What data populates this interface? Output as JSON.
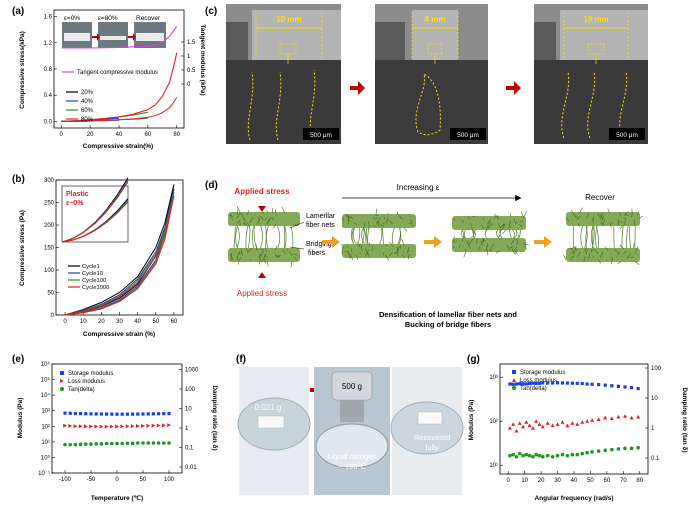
{
  "panels": {
    "a": {
      "letter": "(a)",
      "inset_labels": [
        "ε=0%",
        "ε=80%",
        "Recover"
      ],
      "ylabel": "Compressive stress(kPa)",
      "ylabel_right": "Tangent modulus (kPa)",
      "xlabel": "Compressive strain(%)",
      "legend": [
        "Tangent compressive modulus",
        "20%",
        "40%",
        "60%",
        "80%"
      ],
      "xticks": [
        "0",
        "20",
        "40",
        "60",
        "80"
      ],
      "yticks": [
        "0.0",
        "0.4",
        "0.8",
        "1.2",
        "1.6"
      ],
      "yticks_right": [
        "0",
        "0.5",
        "1",
        "1.5"
      ]
    },
    "b": {
      "letter": "(b)",
      "ylabel": "Compressive stress (Pa)",
      "xlabel": "Compressive strain (%)",
      "inset_title": "Plastic",
      "inset_sub": "ε~0%",
      "legend": [
        "Cycle1",
        "Cycle10",
        "Cycle100",
        "Cycle1000"
      ],
      "xticks": [
        "0",
        "10",
        "20",
        "30",
        "40",
        "50",
        "60"
      ],
      "yticks": [
        "0",
        "50",
        "100",
        "150",
        "200",
        "250",
        "300"
      ]
    },
    "c": {
      "letter": "(c)",
      "widths": [
        "10 mm",
        "4 mm",
        "10 mm"
      ],
      "scalebars": [
        "500 μm",
        "500 μm",
        "500 μm"
      ]
    },
    "d": {
      "letter": "(d)",
      "applied_stress_top": "Applied stress",
      "applied_stress_bottom": "Applied stress",
      "lamellar": "Lamerllar fiber nets",
      "bridging": "Bridging fibers",
      "increasing": "Increasing ε",
      "recover": "Recover",
      "caption": "Densification of lamellar fiber nets and Bucking of bridge fibers"
    },
    "e": {
      "letter": "(e)",
      "ylabel": "Modulus (Pa)",
      "ylabel_right": "Damping ratio (tan δ)",
      "xlabel": "Temperature (℃)",
      "legend": [
        "Storage modulus",
        "Loss modulus",
        "Tan(delta)"
      ],
      "xticks": [
        "-100",
        "-50",
        "0",
        "50",
        "100"
      ],
      "yticks": [
        "10⁻¹",
        "10⁰",
        "10¹",
        "10²",
        "10³",
        "10⁴",
        "10⁵",
        "10⁶"
      ],
      "yticks_right": [
        "0.01",
        "0.1",
        "1",
        "10",
        "100",
        "1000"
      ]
    },
    "f": {
      "letter": "(f)",
      "mass": "0.031 g",
      "weight": "500 g",
      "nitrogen": "Liquid nitrogen",
      "temperature": "~-196℃",
      "recovered": "Recovered fully"
    },
    "g": {
      "letter": "(g)",
      "ylabel": "Modulus (Pa)",
      "ylabel_right": "Damping ratio (tan δ)",
      "xlabel": "Angular frequency (rad/s)",
      "legend": [
        "Storage modulus",
        "Loss modulus",
        "Tan(delta)"
      ],
      "xticks": [
        "0",
        "10",
        "20",
        "30",
        "40",
        "50",
        "60",
        "70",
        "80"
      ],
      "yticks": [
        "10¹",
        "10²",
        "10³"
      ],
      "yticks_right": [
        "0.1",
        "1",
        "10",
        "100"
      ]
    }
  },
  "colors": {
    "c20": "#000000",
    "c40": "#1f3fd1",
    "c60": "#2e8b2e",
    "c80": "#e02020",
    "tangent": "#e040e0",
    "storage": "#1a3fe0",
    "loss": "#e02020",
    "tan": "#1a9a1a",
    "arrow_red": "#c00000",
    "arrow_orange": "#f0a020"
  },
  "chart_data": [
    {
      "panel": "a",
      "type": "line",
      "xlabel": "Compressive strain(%)",
      "ylabel": "Compressive stress(kPa)",
      "xlim": [
        -5,
        85
      ],
      "ylim": [
        -0.1,
        1.7
      ],
      "series": [
        {
          "name": "20%",
          "x": [
            0,
            5,
            10,
            15,
            20
          ],
          "y": [
            0,
            0.004,
            0.008,
            0.012,
            0.016
          ]
        },
        {
          "name": "40%",
          "x": [
            0,
            10,
            20,
            30,
            40
          ],
          "y": [
            0,
            0.01,
            0.02,
            0.035,
            0.05
          ]
        },
        {
          "name": "60%",
          "x": [
            0,
            10,
            20,
            30,
            40,
            50,
            60
          ],
          "y": [
            0,
            0.01,
            0.025,
            0.045,
            0.07,
            0.1,
            0.14
          ]
        },
        {
          "name": "80%",
          "x": [
            0,
            10,
            20,
            30,
            40,
            50,
            60,
            65,
            70,
            75,
            78,
            80
          ],
          "y": [
            0,
            0.01,
            0.025,
            0.045,
            0.07,
            0.11,
            0.18,
            0.25,
            0.38,
            0.6,
            0.85,
            1.05
          ]
        },
        {
          "name": "Tangent compressive modulus",
          "x": [
            0,
            20,
            40,
            60,
            70,
            75,
            80
          ],
          "y": [
            1.12,
            1.12,
            1.13,
            1.15,
            1.2,
            1.3,
            1.45
          ]
        }
      ]
    },
    {
      "panel": "b",
      "type": "line",
      "xlabel": "Compressive strain (%)",
      "ylabel": "Compressive stress (Pa)",
      "xlim": [
        -5,
        65
      ],
      "ylim": [
        0,
        300
      ],
      "series": [
        {
          "name": "Cycle1",
          "x": [
            0,
            10,
            20,
            30,
            40,
            50,
            55,
            60
          ],
          "y": [
            0,
            12,
            28,
            50,
            85,
            150,
            205,
            290
          ]
        },
        {
          "name": "Cycle10",
          "x": [
            0,
            10,
            20,
            30,
            40,
            50,
            55,
            60
          ],
          "y": [
            0,
            10,
            24,
            45,
            80,
            140,
            195,
            280
          ]
        },
        {
          "name": "Cycle100",
          "x": [
            0,
            10,
            20,
            30,
            40,
            50,
            55,
            60
          ],
          "y": [
            0,
            9,
            22,
            42,
            76,
            135,
            188,
            272
          ]
        },
        {
          "name": "Cycle1000",
          "x": [
            0,
            10,
            20,
            30,
            40,
            50,
            55,
            60
          ],
          "y": [
            0,
            8,
            20,
            40,
            72,
            130,
            180,
            265
          ]
        }
      ]
    },
    {
      "panel": "e",
      "type": "scatter",
      "xlabel": "Temperature (℃)",
      "ylabel": "Modulus (Pa)",
      "xlim": [
        -125,
        125
      ],
      "ylim_log": [
        -1,
        6
      ],
      "series": [
        {
          "name": "Storage modulus",
          "x": [
            -100,
            -90,
            -80,
            -70,
            -60,
            -50,
            -40,
            -30,
            -20,
            -10,
            0,
            10,
            20,
            30,
            40,
            50,
            60,
            70,
            80,
            90,
            100
          ],
          "y": [
            700,
            680,
            660,
            650,
            640,
            630,
            620,
            615,
            610,
            605,
            600,
            600,
            600,
            605,
            610,
            615,
            620,
            630,
            640,
            650,
            660
          ]
        },
        {
          "name": "Loss modulus",
          "x": [
            -100,
            -90,
            -80,
            -70,
            -60,
            -50,
            -40,
            -30,
            -20,
            -10,
            0,
            10,
            20,
            30,
            40,
            50,
            60,
            70,
            80,
            90,
            100
          ],
          "y": [
            110,
            105,
            100,
            100,
            98,
            97,
            96,
            95,
            95,
            96,
            97,
            98,
            100,
            102,
            104,
            106,
            108,
            110,
            112,
            115,
            118
          ]
        },
        {
          "name": "Tan(delta)",
          "x": [
            -100,
            -90,
            -80,
            -70,
            -60,
            -50,
            -40,
            -30,
            -20,
            -10,
            0,
            10,
            20,
            30,
            40,
            50,
            60,
            70,
            80,
            90,
            100
          ],
          "y": [
            0.14,
            0.14,
            0.14,
            0.145,
            0.15,
            0.15,
            0.155,
            0.155,
            0.16,
            0.16,
            0.16,
            0.16,
            0.165,
            0.165,
            0.17,
            0.17,
            0.17,
            0.17,
            0.17,
            0.17,
            0.17
          ]
        }
      ]
    },
    {
      "panel": "g",
      "type": "scatter",
      "xlabel": "Angular frequency (rad/s)",
      "ylabel": "Modulus (Pa)",
      "xlim": [
        -5,
        85
      ],
      "ylim_log": [
        0.8,
        3.3
      ],
      "series": [
        {
          "name": "Storage modulus",
          "x": [
            1,
            3,
            5,
            7,
            9,
            11,
            13,
            15,
            17,
            19,
            21,
            24,
            27,
            30,
            33,
            36,
            39,
            42,
            45,
            48,
            51,
            55,
            59,
            63,
            67,
            71,
            75,
            79
          ],
          "y": [
            700,
            690,
            700,
            720,
            710,
            700,
            720,
            730,
            725,
            730,
            740,
            735,
            740,
            745,
            740,
            735,
            730,
            725,
            720,
            700,
            690,
            680,
            660,
            640,
            620,
            600,
            580,
            550
          ]
        },
        {
          "name": "Loss modulus",
          "x": [
            1,
            3,
            5,
            7,
            9,
            11,
            13,
            15,
            17,
            19,
            21,
            24,
            27,
            30,
            33,
            36,
            39,
            42,
            45,
            48,
            51,
            55,
            59,
            63,
            67,
            71,
            75,
            79
          ],
          "y": [
            70,
            85,
            60,
            90,
            75,
            95,
            80,
            70,
            100,
            85,
            75,
            90,
            80,
            85,
            95,
            80,
            90,
            85,
            95,
            100,
            105,
            110,
            120,
            115,
            125,
            130,
            120,
            125
          ]
        },
        {
          "name": "Tan(delta)",
          "x": [
            1,
            3,
            5,
            7,
            9,
            11,
            13,
            15,
            17,
            19,
            21,
            24,
            27,
            30,
            33,
            36,
            39,
            42,
            45,
            48,
            51,
            55,
            59,
            63,
            67,
            71,
            75,
            79
          ],
          "y": [
            0.12,
            0.13,
            0.11,
            0.14,
            0.12,
            0.13,
            0.12,
            0.11,
            0.13,
            0.12,
            0.11,
            0.12,
            0.11,
            0.12,
            0.13,
            0.12,
            0.13,
            0.13,
            0.14,
            0.15,
            0.16,
            0.17,
            0.18,
            0.19,
            0.2,
            0.21,
            0.21,
            0.22
          ]
        }
      ]
    }
  ]
}
